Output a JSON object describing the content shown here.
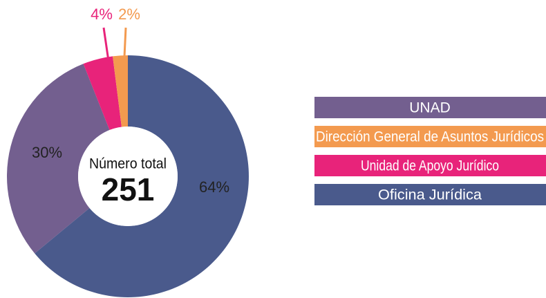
{
  "chart_data": {
    "type": "pie",
    "center_label": "Número total",
    "total": 251,
    "categories": [
      "Oficina Jurídica",
      "UNAD",
      "Unidad de Apoyo Jurídico",
      "Dirección General de Asuntos Jurídicos"
    ],
    "values": [
      64,
      30,
      4,
      2
    ],
    "value_labels": [
      "64%",
      "30%",
      "4%",
      "2%"
    ],
    "colors": [
      "#4a5a8c",
      "#735f8f",
      "#e8237a",
      "#f39a4f"
    ]
  }
}
